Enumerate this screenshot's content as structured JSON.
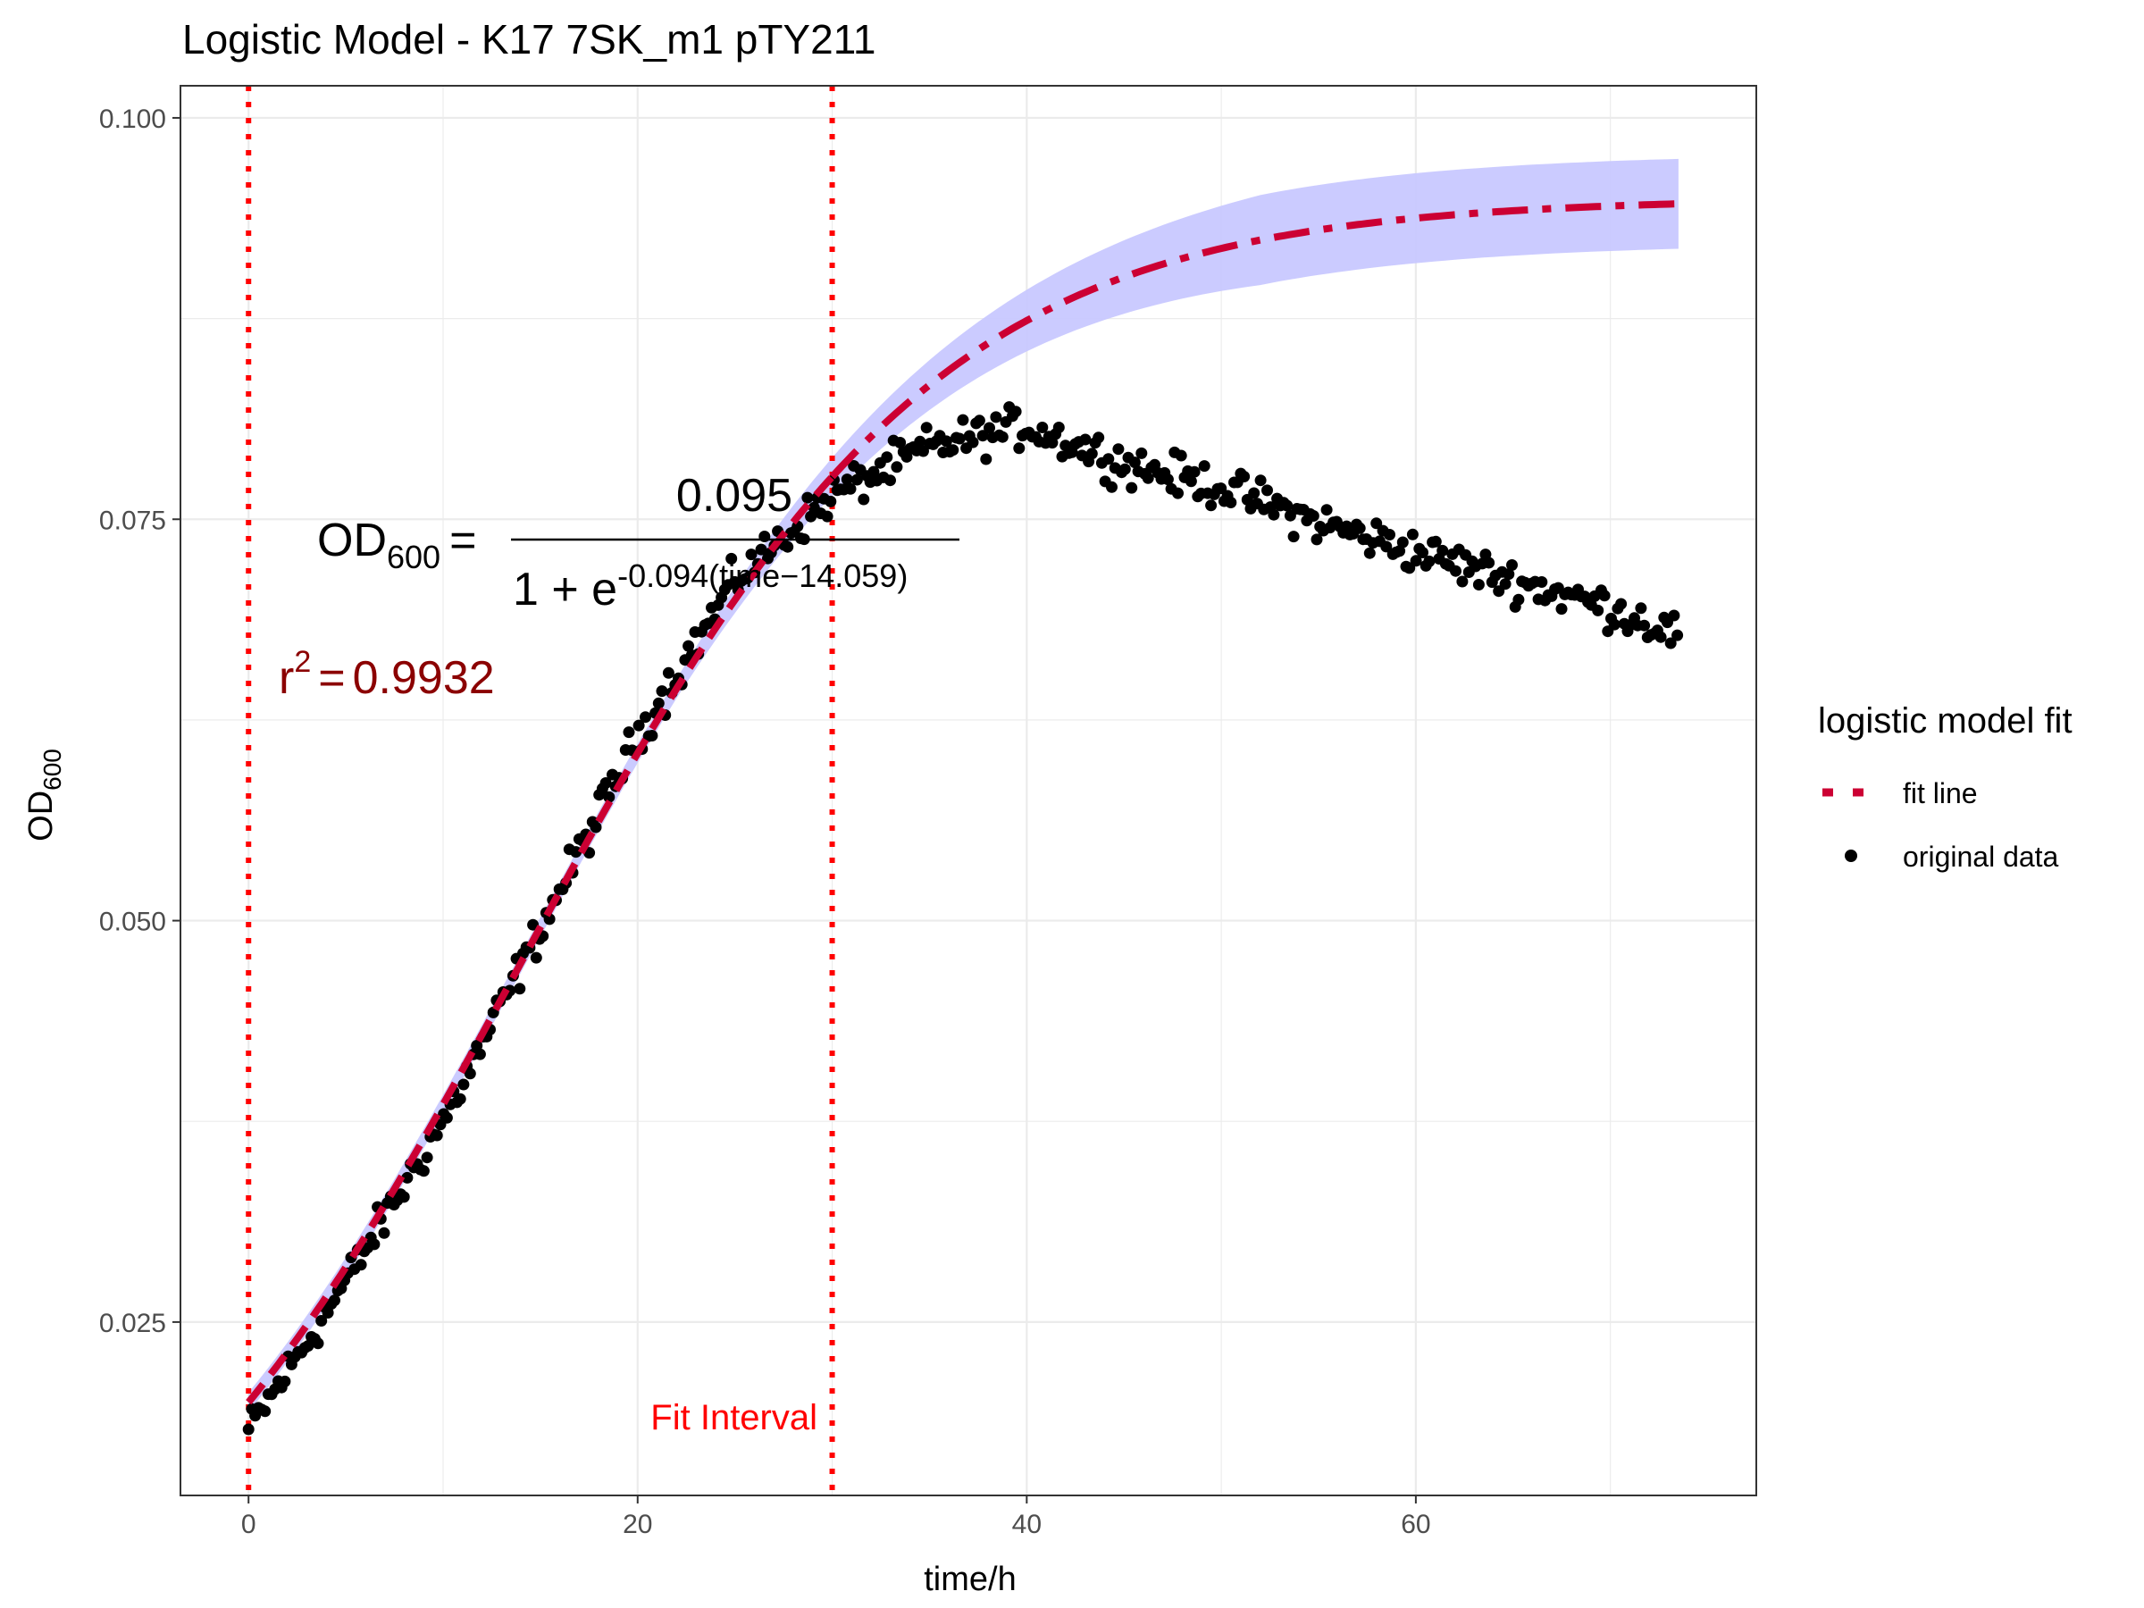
{
  "chart_data": {
    "type": "scatter",
    "title": "Logistic Model -  K17 7SK_m1 pTY211",
    "xlabel": "time/h",
    "ylabel": {
      "main": "OD",
      "sub": "600"
    },
    "xlim": [
      -3.5,
      77.5
    ],
    "ylim": [
      0.0142,
      0.102
    ],
    "x_ticks": [
      0,
      20,
      40,
      60
    ],
    "x_tick_labels": [
      "0",
      "20",
      "40",
      "60"
    ],
    "y_ticks": [
      0.025,
      0.05,
      0.075,
      0.1
    ],
    "y_tick_labels": [
      "0.025",
      "0.050",
      "0.075",
      "0.100"
    ],
    "grid": true,
    "legend": {
      "title": "logistic model fit",
      "position": "right",
      "entries": [
        {
          "label": "fit line",
          "style": "dashed",
          "color": "#cc0033"
        },
        {
          "label": "original data",
          "style": "point",
          "color": "#000000"
        }
      ]
    },
    "model": {
      "K": 0.095,
      "r": 0.094,
      "t0": 14.059,
      "r_squared": "0.9932"
    },
    "formula": {
      "lhs": "OD",
      "lhs_sub": "600",
      "eq": "=",
      "numerator": "0.095",
      "denominator_base": "1 + e",
      "denominator_exp": "-0.094(time−14.059)"
    },
    "r2_label": {
      "r": "r",
      "sup": "2",
      "eq": "=",
      "value": "0.9932"
    },
    "fit_interval": {
      "start": 0,
      "end": 30,
      "label": "Fit Interval"
    },
    "confidence_band": {
      "halfwidth_at_end": 0.0028
    },
    "original_data_model": {
      "x_start": 0,
      "x_end": 73.5,
      "step": 0.17,
      "segments": [
        {
          "t": 0,
          "od": 0.0182
        },
        {
          "t": 5,
          "od": 0.0275
        },
        {
          "t": 10,
          "od": 0.0375
        },
        {
          "t": 15,
          "od": 0.0495
        },
        {
          "t": 20,
          "od": 0.0615
        },
        {
          "t": 25,
          "od": 0.0712
        },
        {
          "t": 30,
          "od": 0.0765
        },
        {
          "t": 35,
          "od": 0.0795
        },
        {
          "t": 40,
          "od": 0.0808
        },
        {
          "t": 45,
          "od": 0.0785
        },
        {
          "t": 50,
          "od": 0.077
        },
        {
          "t": 55,
          "od": 0.0748
        },
        {
          "t": 60,
          "od": 0.073
        },
        {
          "t": 65,
          "od": 0.0712
        },
        {
          "t": 70,
          "od": 0.0695
        },
        {
          "t": 73.5,
          "od": 0.0678
        }
      ],
      "noise": 0.0009
    },
    "colors": {
      "fit_line": "#cc0033",
      "interval_line": "#ff0000",
      "interval_label": "#ff0000",
      "band": "#c8c8ff",
      "points": "#000000",
      "r2": "#8b0000",
      "grid": "#ebebeb",
      "panel_border": "#333333"
    }
  }
}
